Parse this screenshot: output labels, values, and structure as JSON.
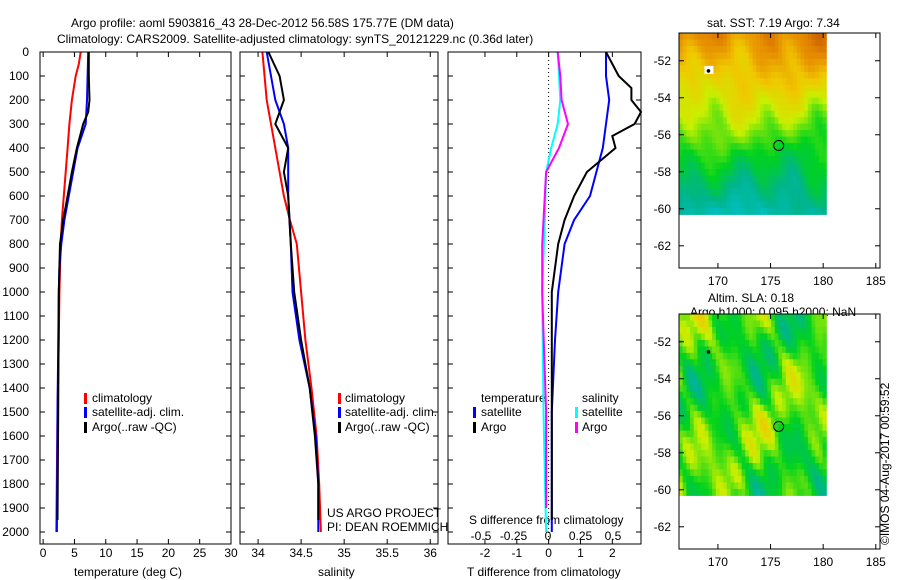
{
  "title": {
    "line1": "Argo profile: aoml 5903816_43 28-Dec-2012 56.58S 175.77E (DM data)",
    "line2": "Climatology: CARS2009. Satellite-adjusted climatology: synTS_20121229.nc (0.36d later)"
  },
  "credits": {
    "project": "US ARGO PROJECT",
    "pi": "PI: DEAN ROEMMICH",
    "stamp": "©IMOS 04-Aug-2017 00:59:52"
  },
  "colors": {
    "climatology": "#ff0000",
    "satellite": "#0000ff",
    "argo": "#000000",
    "s_satellite": "#00ffff",
    "s_argo": "#ff00ff"
  },
  "chart_data": [
    {
      "type": "line",
      "title": "",
      "xlabel": "temperature (deg C)",
      "ylabel": "",
      "xlim": [
        -0.5,
        30
      ],
      "ylim": [
        2050,
        0
      ],
      "xticks": [
        "0",
        "5",
        "10",
        "15",
        "20",
        "25",
        "30"
      ],
      "xtick_values": [
        0,
        5,
        10,
        15,
        20,
        25,
        30
      ],
      "yticks": [
        "0",
        "100",
        "200",
        "300",
        "400",
        "500",
        "600",
        "700",
        "800",
        "900",
        "1000",
        "1100",
        "1200",
        "1300",
        "1400",
        "1500",
        "1600",
        "1700",
        "1800",
        "1900",
        "2000"
      ],
      "legend": [
        "climatology",
        "satellite-adj. clim.",
        "Argo(..raw -QC)"
      ],
      "series": [
        {
          "name": "climatology",
          "color": "#ff0000",
          "depth": [
            0,
            50,
            100,
            200,
            300,
            400,
            500,
            600,
            700,
            800,
            1000,
            1200,
            1500,
            2000
          ],
          "values": [
            6.0,
            5.7,
            5.2,
            4.6,
            4.2,
            3.9,
            3.6,
            3.3,
            3.0,
            2.8,
            2.6,
            2.5,
            2.3,
            2.1
          ]
        },
        {
          "name": "satellite-adj. clim.",
          "color": "#0000ff",
          "depth": [
            0,
            100,
            200,
            300,
            400,
            500,
            600,
            700,
            800,
            900,
            1000,
            1500,
            2000
          ],
          "values": [
            7.2,
            7.1,
            7.0,
            6.8,
            5.5,
            4.8,
            4.1,
            3.4,
            2.9,
            2.6,
            2.5,
            2.3,
            2.2
          ]
        },
        {
          "name": "Argo(..raw -QC)",
          "color": "#000000",
          "depth": [
            0,
            100,
            200,
            250,
            300,
            400,
            500,
            600,
            700,
            800,
            1000,
            1500,
            1950
          ],
          "values": [
            7.3,
            7.3,
            7.4,
            7.2,
            6.4,
            5.4,
            4.6,
            3.9,
            3.2,
            2.7,
            2.5,
            2.4,
            2.3
          ]
        }
      ]
    },
    {
      "type": "line",
      "xlabel": "salinity",
      "xlim": [
        33.79,
        36.09
      ],
      "ylim": [
        2050,
        0
      ],
      "xticks": [
        "34",
        "34.5",
        "35",
        "35.5",
        "36"
      ],
      "xtick_values": [
        34,
        34.5,
        35,
        35.5,
        36
      ],
      "legend": [
        "climatology",
        "satellite-adj. clim.",
        "Argo(..raw -QC)"
      ],
      "series": [
        {
          "name": "climatology",
          "color": "#ff0000",
          "depth": [
            0,
            200,
            400,
            600,
            700,
            800,
            1000,
            1200,
            1400,
            1600,
            1800,
            2000
          ],
          "values": [
            34.05,
            34.1,
            34.2,
            34.3,
            34.37,
            34.45,
            34.5,
            34.55,
            34.62,
            34.68,
            34.71,
            34.73
          ]
        },
        {
          "name": "satellite-adj. clim.",
          "color": "#0000ff",
          "depth": [
            0,
            100,
            200,
            300,
            400,
            600,
            800,
            1000,
            1200,
            1400,
            1600,
            1800,
            2000
          ],
          "values": [
            34.1,
            34.15,
            34.2,
            34.3,
            34.35,
            34.35,
            34.38,
            34.4,
            34.48,
            34.6,
            34.67,
            34.7,
            34.7
          ]
        },
        {
          "name": "Argo(..raw -QC)",
          "color": "#000000",
          "depth": [
            0,
            100,
            200,
            300,
            400,
            500,
            600,
            800,
            1000,
            1200,
            1400,
            1600,
            1800,
            1950
          ],
          "values": [
            34.12,
            34.25,
            34.3,
            34.2,
            34.35,
            34.3,
            34.35,
            34.38,
            34.42,
            34.5,
            34.6,
            34.66,
            34.7,
            34.7
          ]
        }
      ]
    },
    {
      "type": "line",
      "xlabel": "T difference from climatology",
      "x2label": "S difference from climatology",
      "xlim": [
        -3.16,
        2.9
      ],
      "x2lim": [
        -0.5,
        0.5
      ],
      "ylim": [
        2050,
        0
      ],
      "xticks": [
        "-2",
        "-1",
        "0",
        "1",
        "2"
      ],
      "xtick_values": [
        -2,
        -1,
        0,
        1,
        2
      ],
      "x2ticks": [
        "-0.5",
        "-0.25",
        "0",
        "0.25",
        "0.5"
      ],
      "x2tick_values": [
        -0.5,
        -0.25,
        0,
        0.25,
        0.5
      ],
      "legend_groups": [
        {
          "title": "temperature",
          "items": [
            "satellite",
            "Argo"
          ]
        },
        {
          "title": "salinity",
          "items": [
            "satellite",
            "Argo"
          ]
        }
      ],
      "series": [
        {
          "name": "temperature satellite",
          "axis": "T",
          "color": "#0000ff",
          "depth": [
            0,
            100,
            200,
            300,
            400,
            500,
            600,
            700,
            800,
            1000,
            1200,
            1500,
            2000
          ],
          "values": [
            1.8,
            1.8,
            1.9,
            1.8,
            1.7,
            1.5,
            1.3,
            0.8,
            0.5,
            0.3,
            0.2,
            0.1,
            0.1
          ]
        },
        {
          "name": "temperature Argo",
          "axis": "T",
          "color": "#000000",
          "depth": [
            0,
            100,
            150,
            200,
            250,
            300,
            350,
            400,
            500,
            600,
            700,
            800,
            1000,
            1500,
            1950
          ],
          "values": [
            1.8,
            2.2,
            2.6,
            2.6,
            2.9,
            2.7,
            2.0,
            2.1,
            1.2,
            0.8,
            0.5,
            0.3,
            0.1,
            0.1,
            0.1
          ]
        },
        {
          "name": "salinity satellite",
          "axis": "S",
          "color": "#00ffff",
          "depth": [
            0,
            100,
            200,
            300,
            400,
            500,
            700,
            1000,
            1500,
            2000
          ],
          "values": [
            0.07,
            0.08,
            0.09,
            0.07,
            0.02,
            -0.02,
            -0.03,
            -0.05,
            -0.04,
            -0.02
          ]
        },
        {
          "name": "salinity Argo",
          "axis": "S",
          "color": "#ff00ff",
          "depth": [
            0,
            100,
            200,
            300,
            400,
            500,
            600,
            800,
            1000,
            1500,
            1900
          ],
          "values": [
            0.07,
            0.09,
            0.1,
            0.15,
            0.08,
            -0.02,
            -0.03,
            -0.05,
            -0.05,
            -0.02,
            -0.02
          ]
        }
      ]
    },
    {
      "type": "heatmap",
      "title": "sat. SST: 7.19 Argo: 7.34",
      "xlim": [
        166.3,
        185.4
      ],
      "ylim": [
        -63.2,
        -50.5
      ],
      "xticks": [
        "170",
        "175",
        "180",
        "185"
      ],
      "xtick_values": [
        170,
        175,
        180,
        185
      ],
      "yticks": [
        "-52",
        "-54",
        "-56",
        "-58",
        "-60",
        "-62"
      ],
      "ytick_values": [
        -52,
        -54,
        -56,
        -58,
        -60,
        -62
      ],
      "data_extent": {
        "lon": [
          166.3,
          180.1
        ],
        "lat": [
          -60.1,
          -50.5
        ]
      },
      "profile_location": {
        "lon": 175.77,
        "lat": -56.58
      },
      "marker": {
        "lon": 169.1,
        "lat": -52.55
      }
    },
    {
      "type": "heatmap",
      "title": "Altim. SLA: 0.18",
      "subtitle": "Argo h1000: 0.095 h2000: NaN",
      "xlim": [
        166.3,
        185.4
      ],
      "ylim": [
        -63.2,
        -50.5
      ],
      "xticks": [
        "170",
        "175",
        "180",
        "185"
      ],
      "xtick_values": [
        170,
        175,
        180,
        185
      ],
      "yticks": [
        "-52",
        "-54",
        "-56",
        "-58",
        "-60",
        "-62"
      ],
      "ytick_values": [
        -52,
        -54,
        -56,
        -58,
        -60,
        -62
      ],
      "data_extent": {
        "lon": [
          166.3,
          180.1
        ],
        "lat": [
          -60.1,
          -50.5
        ]
      },
      "profile_location": {
        "lon": 175.77,
        "lat": -56.58
      },
      "marker": {
        "lon": 169.1,
        "lat": -52.55
      }
    }
  ]
}
